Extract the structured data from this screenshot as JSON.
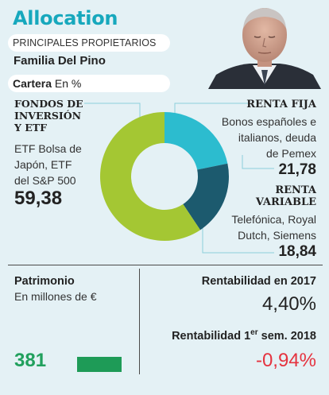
{
  "header": {
    "title": "Allocation",
    "owners_label": "PRINCIPALES PROPIETARIOS",
    "owner_name": "Familia Del Pino",
    "portfolio_label": "Cartera",
    "portfolio_unit": "En %"
  },
  "colors": {
    "accent": "#17a8bd",
    "fondos": "#a4c733",
    "renta_fija": "#2cbccf",
    "renta_variable": "#1c5a6e",
    "leader": "#8ccfdc",
    "positive": "#21a05d",
    "negative": "#e5333f"
  },
  "chart_data": {
    "type": "pie",
    "variant": "donut",
    "slices": [
      {
        "key": "renta_fija",
        "label_lines": [
          "RENTA FIJA"
        ],
        "description_lines": [
          "Bonos españoles e",
          "italianos, deuda",
          "de Pemex"
        ],
        "value_text": "21,78",
        "value": 21.78,
        "color": "#2cbccf"
      },
      {
        "key": "renta_variable",
        "label_lines": [
          "RENTA",
          "VARIABLE"
        ],
        "description_lines": [
          "Telefónica, Royal",
          "Dutch, Siemens"
        ],
        "value_text": "18,84",
        "value": 18.84,
        "color": "#1c5a6e"
      },
      {
        "key": "fondos",
        "label_lines": [
          "FONDOS DE",
          "INVERSIÓN",
          "Y ETF"
        ],
        "description_lines": [
          "ETF Bolsa de",
          "Japón, ETF",
          "del S&P 500"
        ],
        "value_text": "59,38",
        "value": 59.38,
        "color": "#a4c733"
      }
    ]
  },
  "footer": {
    "wealth_label": "Patrimonio",
    "wealth_unit": "En millones de €",
    "wealth_value": "381",
    "return_2017_label": "Rentabilidad en 2017",
    "return_2017_value": "4,40%",
    "return_2018_label_pre": "Rentabilidad 1",
    "return_2018_label_sup": "er",
    "return_2018_label_post": " sem. 2018",
    "return_2018_value": "-0,94%"
  }
}
